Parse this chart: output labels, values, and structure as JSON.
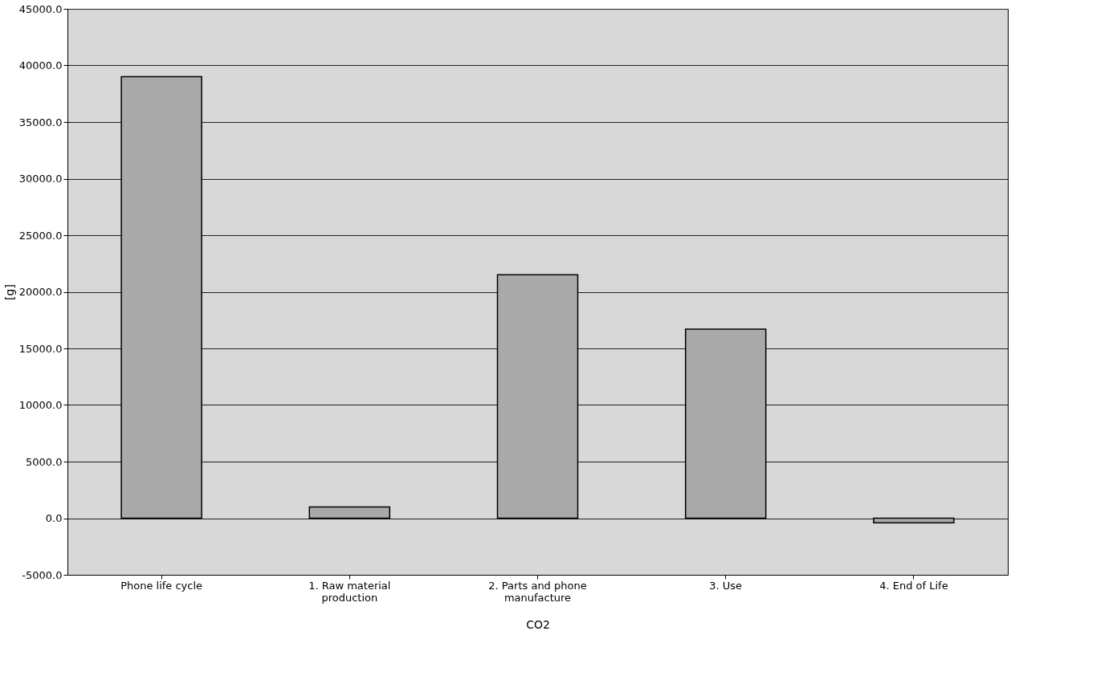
{
  "chart_data": {
    "type": "bar",
    "categories": [
      "Phone life cycle",
      "1. Raw material production",
      "2. Parts and phone manufacture",
      "3. Use",
      "4. End of Life"
    ],
    "values": [
      39000,
      1000,
      21500,
      16700,
      -400
    ],
    "color": "#a9a9a9",
    "xlabel": "CO2",
    "ylabel": "[g]",
    "ylim": [
      -5000,
      45000
    ],
    "yticks": [
      {
        "value": -5000,
        "label": "-5000.0"
      },
      {
        "value": 0,
        "label": "0.0"
      },
      {
        "value": 5000,
        "label": "5000.0"
      },
      {
        "value": 10000,
        "label": "10000.0"
      },
      {
        "value": 15000,
        "label": "15000.0"
      },
      {
        "value": 20000,
        "label": "20000.0"
      },
      {
        "value": 25000,
        "label": "25000.0"
      },
      {
        "value": 30000,
        "label": "30000.0"
      },
      {
        "value": 35000,
        "label": "35000.0"
      },
      {
        "value": 40000,
        "label": "40000.0"
      },
      {
        "value": 45000,
        "label": "45000.0"
      }
    ],
    "grid": "y"
  }
}
